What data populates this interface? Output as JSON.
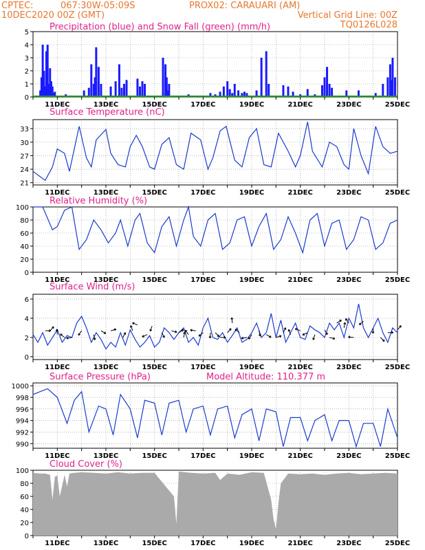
{
  "header": {
    "line1_left": "CPTEC:",
    "line1_coords": "067:30W-05:09S",
    "line1_station": "PROX02: CARAUARI (AM)",
    "line2_left": "10DEC2020 00Z (GMT)",
    "line2_right": "Vertical Grid Line: 00Z",
    "code": "TQ0126L028"
  },
  "colors": {
    "header": "#e8772e",
    "panel_title": "#e0208a",
    "precip": "#1a1aff",
    "snow": "#1a9b1a",
    "line": "#1a3acc",
    "arrow": "#000000",
    "cloud": "#aaaaaa"
  },
  "x_axis": {
    "labels": [
      "11DEC",
      "13DEC",
      "15DEC",
      "17DEC",
      "19DEC",
      "21DEC",
      "23DEC",
      "25DEC"
    ]
  },
  "chart_data": [
    {
      "id": "precip",
      "type": "bar",
      "title": "Precipitation (blue) and Snow Fall (green) (mm/h)",
      "x_range_days": [
        0,
        15
      ],
      "ylim": [
        0,
        5
      ],
      "yticks": [
        "0",
        "1",
        "2",
        "3",
        "4",
        "5"
      ],
      "series": [
        {
          "name": "Precipitation",
          "x": [
            0.3,
            0.35,
            0.4,
            0.45,
            0.5,
            0.55,
            0.6,
            0.65,
            0.7,
            0.75,
            0.8,
            0.85,
            0.9,
            1.35,
            1.9,
            2.1,
            2.3,
            2.4,
            2.5,
            2.55,
            2.6,
            2.7,
            2.8,
            3.2,
            3.4,
            3.55,
            3.65,
            3.75,
            3.85,
            4.3,
            4.4,
            4.5,
            4.6,
            5.35,
            5.45,
            5.5,
            5.55,
            5.6,
            6.4,
            6.6,
            7.3,
            7.5,
            7.7,
            7.85,
            8.0,
            8.1,
            8.2,
            8.3,
            8.45,
            8.6,
            8.7,
            8.8,
            9.2,
            9.4,
            9.6,
            9.7,
            10.3,
            10.5,
            10.7,
            11.0,
            11.1,
            11.3,
            11.6,
            11.9,
            12.0,
            12.1,
            12.2,
            12.3,
            12.9,
            13.4,
            14.1,
            14.4,
            14.6,
            14.7,
            14.75,
            14.8,
            14.9
          ],
          "values": [
            0.5,
            1.5,
            4.0,
            2.0,
            0.8,
            3.5,
            4.0,
            1.0,
            2.2,
            1.2,
            0.8,
            0.3,
            0.4,
            0.2,
            0.1,
            0.5,
            0.7,
            2.5,
            1.0,
            1.5,
            3.8,
            2.3,
            1.0,
            0.8,
            1.2,
            2.5,
            0.7,
            1.0,
            1.3,
            1.4,
            0.8,
            1.2,
            1.0,
            3.0,
            2.5,
            1.5,
            0.5,
            1.0,
            0.2,
            0.1,
            0.3,
            0.2,
            0.4,
            0.8,
            1.2,
            0.6,
            0.3,
            1.0,
            0.5,
            0.3,
            0.4,
            0.3,
            0.5,
            3.0,
            3.5,
            1.0,
            0.9,
            0.8,
            0.4,
            0.2,
            0.1,
            0.6,
            0.2,
            0.9,
            1.5,
            2.3,
            1.0,
            0.7,
            0.5,
            0.5,
            0.3,
            1.0,
            1.5,
            2.5,
            1.3,
            3.0,
            1.5
          ]
        },
        {
          "name": "Snow Fall",
          "x": [
            0,
            15
          ],
          "values": [
            0,
            0
          ]
        }
      ]
    },
    {
      "id": "temp",
      "type": "line",
      "title": "Surface Temperature (nC)",
      "ylim": [
        20.5,
        35
      ],
      "yticks": [
        "21",
        "24",
        "27",
        "30",
        "33"
      ],
      "series": [
        {
          "name": "Temperature",
          "x": [
            0.0,
            0.5,
            0.8,
            1.0,
            1.3,
            1.5,
            1.9,
            2.2,
            2.4,
            2.6,
            3.0,
            3.2,
            3.5,
            3.8,
            4.0,
            4.25,
            4.5,
            4.8,
            5.0,
            5.3,
            5.6,
            5.9,
            6.2,
            6.5,
            6.9,
            7.2,
            7.4,
            7.7,
            7.95,
            8.3,
            8.6,
            8.9,
            9.2,
            9.5,
            9.8,
            10.1,
            10.5,
            10.8,
            11.0,
            11.3,
            11.5,
            11.9,
            12.2,
            12.5,
            12.8,
            13.0,
            13.2,
            13.5,
            13.8,
            14.1,
            14.4,
            14.7,
            15.0
          ],
          "values": [
            23.5,
            21.5,
            24.5,
            28.5,
            27.5,
            23.5,
            33.5,
            26.5,
            24.5,
            30.5,
            32.8,
            27.5,
            25.0,
            24.5,
            29.0,
            31.5,
            29.0,
            24.5,
            24.0,
            29.5,
            31.0,
            25.0,
            24.0,
            32.0,
            30.5,
            24.0,
            26.5,
            32.5,
            33.5,
            26.0,
            24.5,
            31.0,
            33.0,
            25.0,
            24.5,
            32.0,
            28.0,
            24.5,
            27.0,
            34.5,
            28.0,
            24.5,
            30.0,
            29.0,
            25.0,
            24.0,
            33.0,
            27.0,
            23.0,
            33.5,
            29.0,
            27.5,
            28.0
          ]
        }
      ]
    },
    {
      "id": "rh",
      "type": "line",
      "title": "Relative Humidity (%)",
      "ylim": [
        0,
        100
      ],
      "yticks": [
        "0",
        "20",
        "40",
        "60",
        "80",
        "100"
      ],
      "series": [
        {
          "name": "Relative Humidity",
          "x": [
            0.0,
            0.4,
            0.8,
            1.0,
            1.3,
            1.6,
            1.9,
            2.2,
            2.5,
            2.8,
            3.1,
            3.4,
            3.6,
            3.9,
            4.2,
            4.4,
            4.7,
            5.0,
            5.3,
            5.6,
            5.9,
            6.2,
            6.4,
            6.6,
            6.9,
            7.2,
            7.5,
            7.8,
            8.1,
            8.4,
            8.7,
            9.0,
            9.3,
            9.6,
            9.9,
            10.2,
            10.5,
            10.8,
            11.1,
            11.4,
            11.7,
            12.0,
            12.3,
            12.6,
            12.9,
            13.2,
            13.5,
            13.8,
            14.1,
            14.4,
            14.7,
            15.0
          ],
          "values": [
            100.0,
            100.0,
            65.0,
            70.0,
            95.0,
            100.0,
            35.0,
            50.0,
            80.0,
            65.0,
            45.0,
            60.0,
            80.0,
            40.0,
            80.0,
            90.0,
            45.0,
            30.0,
            70.0,
            85.0,
            40.0,
            80.0,
            100.0,
            55.0,
            40.0,
            80.0,
            90.0,
            35.0,
            45.0,
            80.0,
            85.0,
            40.0,
            70.0,
            90.0,
            35.0,
            50.0,
            85.0,
            60.0,
            30.0,
            80.0,
            90.0,
            40.0,
            75.0,
            80.0,
            35.0,
            50.0,
            85.0,
            80.0,
            35.0,
            45.0,
            75.0,
            80.0
          ]
        }
      ]
    },
    {
      "id": "wind",
      "type": "line",
      "title": "Surface Wind (m/s)",
      "ylim": [
        -0.3,
        6.5
      ],
      "yticks": [
        "0",
        "2",
        "4",
        "6"
      ],
      "series": [
        {
          "name": "Wind Speed",
          "x": [
            0.0,
            0.2,
            0.4,
            0.6,
            0.8,
            1.0,
            1.2,
            1.4,
            1.6,
            1.8,
            2.0,
            2.2,
            2.4,
            2.6,
            2.8,
            3.0,
            3.2,
            3.4,
            3.6,
            3.8,
            4.0,
            4.2,
            4.4,
            4.6,
            4.8,
            5.0,
            5.2,
            5.4,
            5.6,
            5.8,
            6.0,
            6.2,
            6.4,
            6.6,
            6.8,
            7.0,
            7.2,
            7.4,
            7.6,
            7.8,
            8.0,
            8.2,
            8.4,
            8.6,
            8.8,
            9.0,
            9.2,
            9.4,
            9.6,
            9.8,
            10.0,
            10.2,
            10.4,
            10.6,
            10.8,
            11.0,
            11.2,
            11.4,
            11.6,
            11.8,
            12.0,
            12.2,
            12.4,
            12.6,
            12.8,
            13.0,
            13.2,
            13.4,
            13.6,
            13.8,
            14.0,
            14.2,
            14.4,
            14.6,
            14.8,
            15.0
          ],
          "values": [
            2.3,
            1.5,
            2.5,
            1.2,
            2.0,
            2.8,
            1.5,
            2.2,
            2.0,
            3.5,
            4.2,
            3.0,
            1.5,
            2.5,
            1.8,
            0.8,
            1.5,
            1.0,
            2.5,
            1.2,
            2.8,
            1.8,
            1.0,
            1.5,
            2.2,
            1.0,
            1.5,
            3.0,
            2.5,
            1.8,
            2.5,
            3.0,
            1.5,
            2.0,
            1.2,
            3.0,
            4.0,
            2.0,
            1.8,
            2.5,
            1.5,
            2.2,
            3.0,
            1.5,
            1.8,
            2.5,
            3.5,
            2.0,
            2.5,
            4.5,
            2.0,
            3.8,
            1.5,
            2.5,
            3.5,
            2.0,
            1.8,
            3.2,
            2.8,
            2.5,
            2.0,
            3.5,
            2.8,
            3.5,
            2.0,
            4.0,
            3.0,
            5.5,
            3.0,
            2.0,
            3.0,
            4.0,
            2.5,
            1.5,
            3.0,
            2.5
          ]
        },
        {
          "name": "Wind Direction",
          "x": [
            0.5,
            0.7,
            1.0,
            1.3,
            1.6,
            2.0,
            2.5,
            2.8,
            3.2,
            3.7,
            4.1,
            4.3,
            4.7,
            4.9,
            5.3,
            5.7,
            6.0,
            6.2,
            6.4,
            6.7,
            7.0,
            7.3,
            7.5,
            7.7,
            8.0,
            8.2,
            8.5,
            8.8,
            9.0,
            9.3,
            9.6,
            10.0,
            10.3,
            10.6,
            11.0,
            11.3,
            11.6,
            12.0,
            12.2,
            12.5,
            12.8,
            13.0,
            13.2,
            13.6,
            14.0,
            14.3,
            14.6,
            15.0
          ],
          "values": [
            2.7,
            2.7,
            2.3,
            2.0,
            2.0,
            2.7,
            2.3,
            2.7,
            2.7,
            2.0,
            2.7,
            3.3,
            2.3,
            3.2,
            2.5,
            2.7,
            2.5,
            2.0,
            2.3,
            2.7,
            2.5,
            2.5,
            2.5,
            2.0,
            2.5,
            3.5,
            2.5,
            2.0,
            2.3,
            2.7,
            2.3,
            2.0,
            2.5,
            2.3,
            2.7,
            2.5,
            2.3,
            2.8,
            2.0,
            3.5,
            3.0,
            3.5,
            2.0,
            3.7,
            3.0,
            2.0,
            2.5,
            2.8
          ]
        }
      ]
    },
    {
      "id": "pressure",
      "type": "line",
      "title": "Surface Pressure (hPa)",
      "subtitle": "Model Altitude: 110.377 m",
      "ylim": [
        989.2,
        1000.5
      ],
      "yticks": [
        "990",
        "992",
        "994",
        "996",
        "998",
        "1000"
      ],
      "series": [
        {
          "name": "Surface Pressure",
          "x": [
            0.0,
            0.3,
            0.6,
            1.0,
            1.4,
            1.7,
            2.0,
            2.3,
            2.7,
            3.0,
            3.3,
            3.6,
            4.0,
            4.3,
            4.6,
            5.0,
            5.3,
            5.6,
            6.0,
            6.3,
            6.6,
            7.0,
            7.3,
            7.6,
            8.0,
            8.3,
            8.6,
            9.0,
            9.3,
            9.6,
            10.0,
            10.3,
            10.6,
            11.0,
            11.3,
            11.6,
            12.0,
            12.3,
            12.6,
            13.0,
            13.3,
            13.6,
            14.0,
            14.3,
            14.6,
            15.0
          ],
          "values": [
            998.5,
            999.0,
            999.5,
            998.0,
            993.5,
            997.5,
            999.0,
            992.0,
            996.5,
            996.0,
            991.5,
            998.5,
            996.0,
            991.0,
            997.5,
            997.0,
            991.5,
            997.0,
            997.5,
            992.0,
            996.0,
            996.5,
            991.5,
            996.0,
            996.5,
            991.0,
            995.0,
            996.0,
            990.5,
            996.0,
            995.5,
            989.5,
            994.5,
            994.5,
            990.5,
            994.0,
            995.0,
            990.5,
            994.0,
            994.0,
            989.5,
            993.5,
            993.5,
            989.5,
            996.0,
            991.0
          ]
        }
      ]
    },
    {
      "id": "cloud",
      "type": "area",
      "title": "Cloud Cover (%)",
      "ylim": [
        0,
        100
      ],
      "yticks": [
        "0",
        "20",
        "40",
        "60",
        "80",
        "100"
      ],
      "series": [
        {
          "name": "Cloud Cover",
          "x": [
            0.0,
            0.3,
            0.5,
            0.7,
            0.8,
            0.9,
            1.0,
            1.1,
            1.3,
            1.4,
            1.5,
            1.7,
            2.0,
            2.5,
            3.0,
            3.5,
            4.0,
            4.5,
            5.0,
            5.8,
            5.9,
            6.0,
            6.5,
            7.0,
            7.5,
            7.7,
            8.0,
            8.5,
            9.0,
            9.5,
            9.8,
            9.9,
            10.0,
            10.1,
            10.2,
            10.5,
            11.0,
            11.5,
            12.0,
            12.5,
            13.0,
            13.5,
            14.0,
            14.5,
            15.0
          ],
          "values": [
            96,
            95,
            95,
            93,
            55,
            90,
            92,
            60,
            93,
            75,
            95,
            96,
            97,
            96,
            95,
            97,
            95,
            96,
            96,
            60,
            18,
            98,
            96,
            95,
            96,
            85,
            95,
            93,
            97,
            96,
            55,
            25,
            10,
            50,
            80,
            95,
            94,
            95,
            93,
            95,
            96,
            94,
            95,
            96,
            95
          ]
        }
      ]
    }
  ]
}
